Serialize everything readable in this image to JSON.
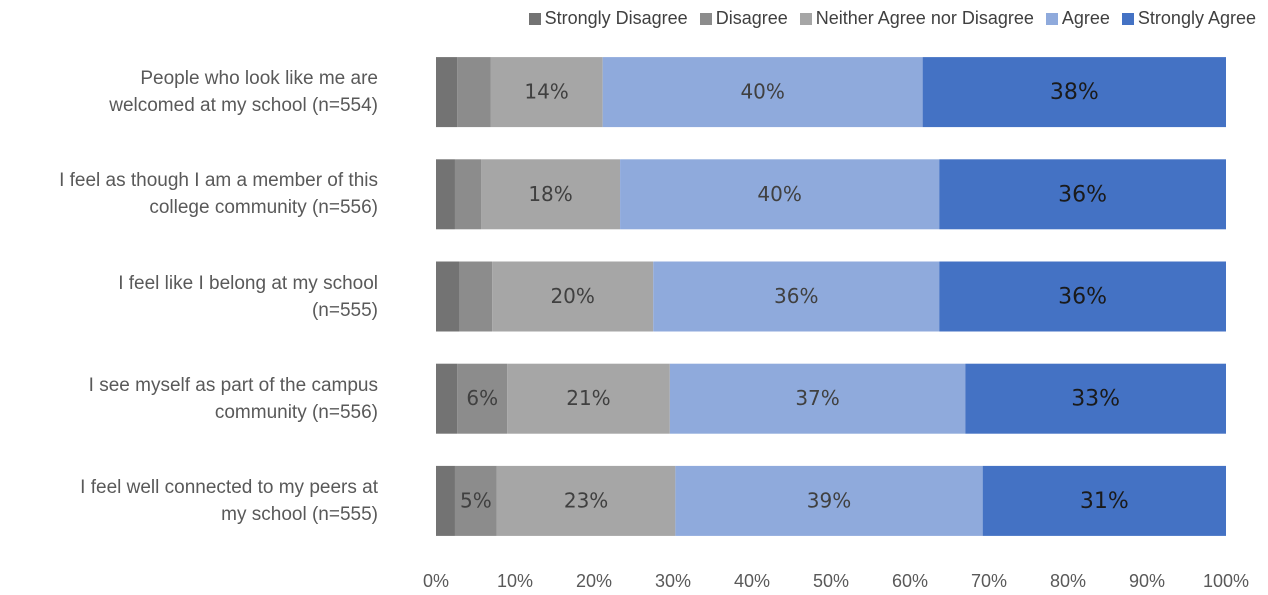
{
  "chart_data": {
    "type": "stacked-barh",
    "categories": [
      "People who look like me are\nwelcomed at my school (n=554)",
      "I feel as though I am a member of this\ncollege community (n=556)",
      "I feel like I belong at my school\n(n=555)",
      "I see myself as part of the campus\ncommunity (n=556)",
      "I feel well connected to my peers at\nmy school (n=555)"
    ],
    "series": [
      {
        "name": "Strongly Disagree",
        "color": "#737373",
        "values": [
          2.7,
          2.4,
          3.0,
          2.7,
          2.4
        ],
        "value_labels": [
          null,
          null,
          null,
          null,
          null
        ]
      },
      {
        "name": "Disagree",
        "color": "#8c8c8c",
        "values": [
          4.2,
          3.3,
          4.1,
          6.3,
          5.3
        ],
        "value_labels": [
          null,
          null,
          null,
          "6%",
          "5%"
        ]
      },
      {
        "name": "Neither Agree nor Disagree",
        "color": "#a6a6a6",
        "values": [
          14.2,
          17.6,
          20.4,
          20.6,
          22.6
        ],
        "value_labels": [
          "14%",
          "18%",
          "20%",
          "21%",
          "23%"
        ]
      },
      {
        "name": "Agree",
        "color": "#8faadc",
        "values": [
          40.5,
          40.4,
          36.2,
          37.4,
          38.9
        ],
        "value_labels": [
          "40%",
          "40%",
          "36%",
          "37%",
          "39%"
        ]
      },
      {
        "name": "Strongly Agree",
        "color": "#4472c4",
        "values": [
          38.4,
          36.3,
          36.3,
          33.0,
          30.8
        ],
        "value_labels": [
          "38%",
          "36%",
          "36%",
          "33%",
          "31%"
        ]
      }
    ],
    "xlim": [
      0,
      100
    ],
    "xticks": [
      {
        "value": 0,
        "label": "0%"
      },
      {
        "value": 10,
        "label": "10%"
      },
      {
        "value": 20,
        "label": "20%"
      },
      {
        "value": 30,
        "label": "30%"
      },
      {
        "value": 40,
        "label": "40%"
      },
      {
        "value": 50,
        "label": "50%"
      },
      {
        "value": 60,
        "label": "60%"
      },
      {
        "value": 70,
        "label": "70%"
      },
      {
        "value": 80,
        "label": "80%"
      },
      {
        "value": 90,
        "label": "90%"
      },
      {
        "value": 100,
        "label": "100%"
      }
    ],
    "legend": "top"
  }
}
